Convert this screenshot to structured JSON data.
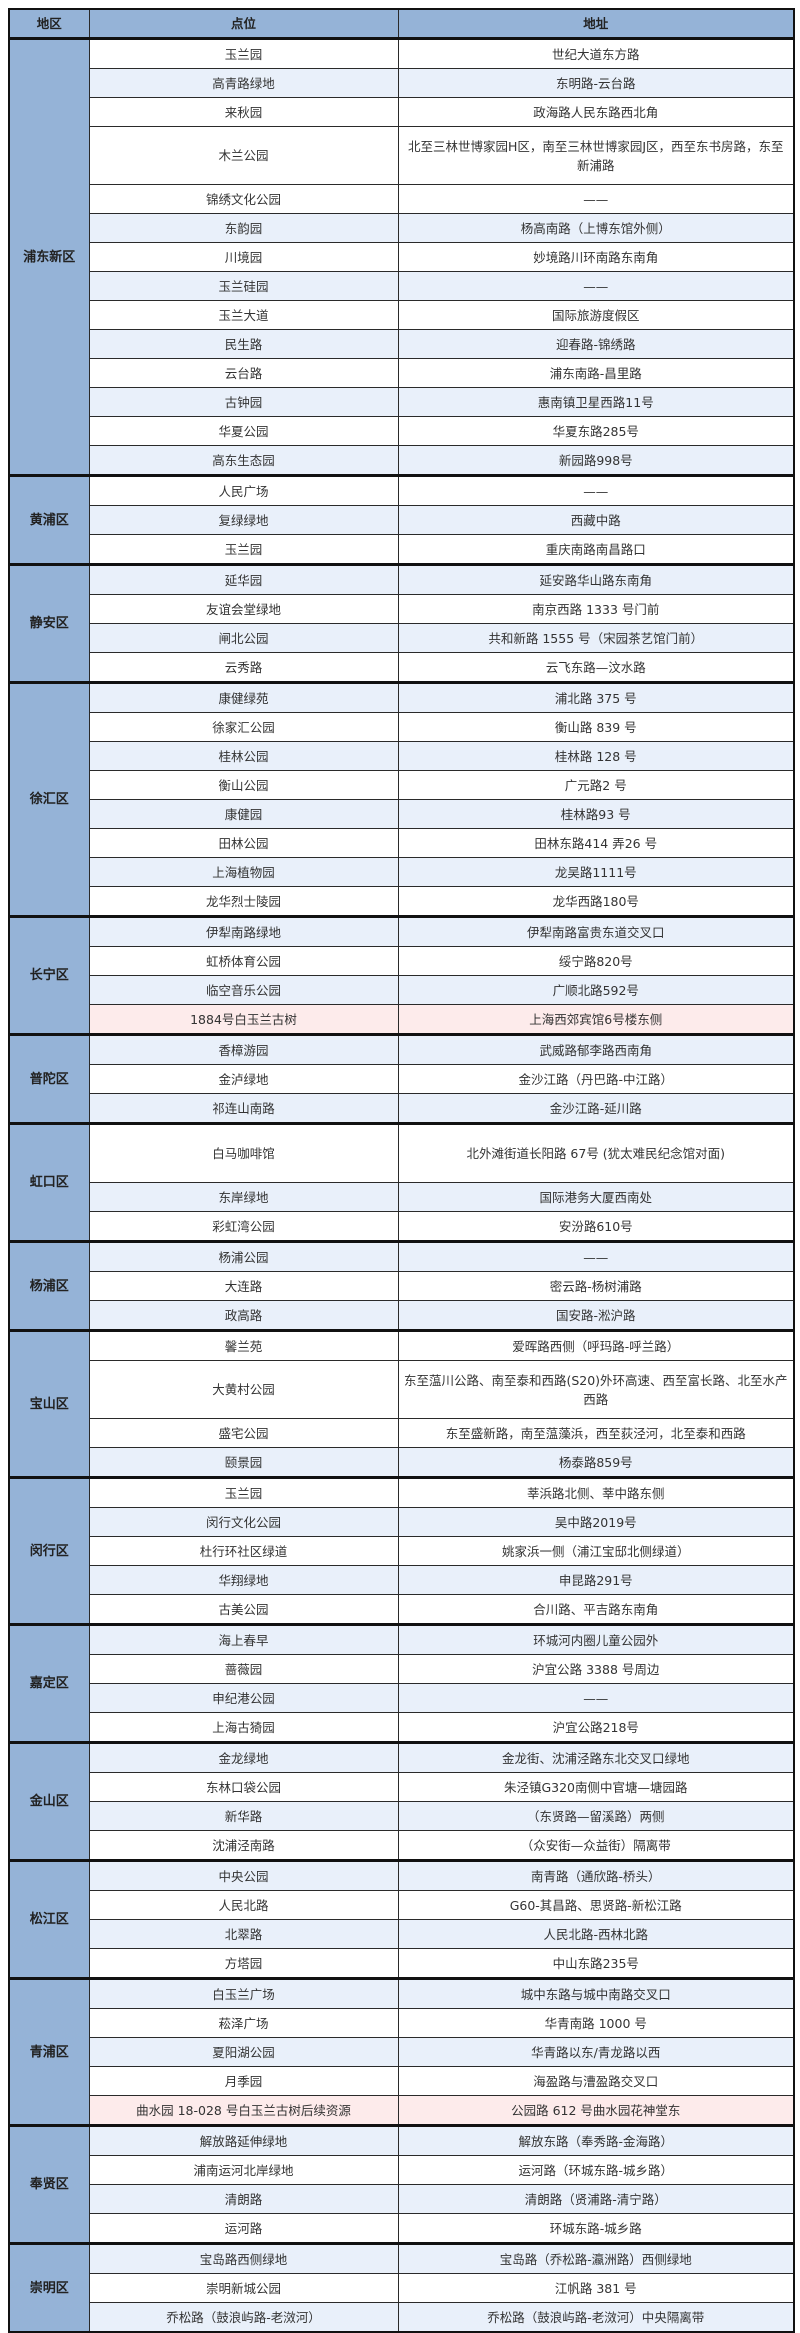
{
  "header": {
    "region": "地区",
    "point": "点位",
    "address": "地址"
  },
  "colors": {
    "header_bg": "#95b3d7",
    "row_alt": "#e9f0fa",
    "row_highlight": "#fdebeb"
  },
  "sections": [
    {
      "region": "浦东新区",
      "rows": [
        {
          "point": "玉兰园",
          "address": "世纪大道东方路",
          "shade": "w"
        },
        {
          "point": "高青路绿地",
          "address": "东明路-云台路",
          "shade": "b"
        },
        {
          "point": "来秋园",
          "address": "政海路人民东路西北角",
          "shade": "w"
        },
        {
          "point": "木兰公园",
          "address": "北至三林世博家园H区，南至三林世博家园J区，西至东书房路，东至新浦路",
          "shade": "w",
          "tall": true
        },
        {
          "point": "锦绣文化公园",
          "address": "——",
          "shade": "w"
        },
        {
          "point": "东韵园",
          "address": "杨高南路（上博东馆外侧）",
          "shade": "b"
        },
        {
          "point": "川境园",
          "address": "妙境路川环南路东南角",
          "shade": "w"
        },
        {
          "point": "玉兰硅园",
          "address": "——",
          "shade": "b"
        },
        {
          "point": "玉兰大道",
          "address": "国际旅游度假区",
          "shade": "w"
        },
        {
          "point": "民生路",
          "address": "迎春路-锦绣路",
          "shade": "b"
        },
        {
          "point": "云台路",
          "address": "浦东南路-昌里路",
          "shade": "w"
        },
        {
          "point": "古钟园",
          "address": "惠南镇卫星西路11号",
          "shade": "b"
        },
        {
          "point": "华夏公园",
          "address": "华夏东路285号",
          "shade": "w"
        },
        {
          "point": "高东生态园",
          "address": "新园路998号",
          "shade": "b"
        }
      ]
    },
    {
      "region": "黄浦区",
      "rows": [
        {
          "point": "人民广场",
          "address": "——",
          "shade": "w"
        },
        {
          "point": "复绿绿地",
          "address": "西藏中路",
          "shade": "b"
        },
        {
          "point": "玉兰园",
          "address": "重庆南路南昌路口",
          "shade": "w"
        }
      ]
    },
    {
      "region": "静安区",
      "rows": [
        {
          "point": "延华园",
          "address": "延安路华山路东南角",
          "shade": "b"
        },
        {
          "point": "友谊会堂绿地",
          "address": "南京西路 1333 号门前",
          "shade": "w"
        },
        {
          "point": "闸北公园",
          "address": "共和新路 1555 号（宋园茶艺馆门前）",
          "shade": "b"
        },
        {
          "point": "云秀路",
          "address": "云飞东路—汶水路",
          "shade": "w"
        }
      ]
    },
    {
      "region": "徐汇区",
      "rows": [
        {
          "point": "康健绿苑",
          "address": "浦北路 375 号",
          "shade": "b"
        },
        {
          "point": "徐家汇公园",
          "address": "衡山路 839 号",
          "shade": "w"
        },
        {
          "point": "桂林公园",
          "address": "桂林路 128 号",
          "shade": "b"
        },
        {
          "point": "衡山公园",
          "address": "广元路2 号",
          "shade": "w"
        },
        {
          "point": "康健园",
          "address": "桂林路93 号",
          "shade": "b"
        },
        {
          "point": "田林公园",
          "address": "田林东路414 弄26 号",
          "shade": "w"
        },
        {
          "point": "上海植物园",
          "address": "龙吴路1111号",
          "shade": "b"
        },
        {
          "point": "龙华烈士陵园",
          "address": "龙华西路180号",
          "shade": "w"
        }
      ]
    },
    {
      "region": "长宁区",
      "rows": [
        {
          "point": "伊犁南路绿地",
          "address": "伊犁南路富贵东道交叉口",
          "shade": "b"
        },
        {
          "point": "虹桥体育公园",
          "address": "绥宁路820号",
          "shade": "w"
        },
        {
          "point": "临空音乐公园",
          "address": "广顺北路592号",
          "shade": "b"
        },
        {
          "point": "1884号白玉兰古树",
          "address": "上海西郊宾馆6号楼东侧",
          "shade": "p"
        }
      ]
    },
    {
      "region": "普陀区",
      "rows": [
        {
          "point": "香樟游园",
          "address": "武威路郁李路西南角",
          "shade": "b"
        },
        {
          "point": "金泸绿地",
          "address": "金沙江路（丹巴路-中江路）",
          "shade": "w"
        },
        {
          "point": "祁连山南路",
          "address": "金沙江路-延川路",
          "shade": "b"
        }
      ]
    },
    {
      "region": "虹口区",
      "rows": [
        {
          "point": "白马咖啡馆",
          "address": "北外滩街道长阳路 67号 (犹太难民纪念馆对面)",
          "shade": "w",
          "tall": true
        },
        {
          "point": "东岸绿地",
          "address": "国际港务大厦西南处",
          "shade": "b"
        },
        {
          "point": "彩虹湾公园",
          "address": "安汾路610号",
          "shade": "w"
        }
      ]
    },
    {
      "region": "杨浦区",
      "rows": [
        {
          "point": "杨浦公园",
          "address": "——",
          "shade": "b"
        },
        {
          "point": "大连路",
          "address": "密云路-杨树浦路",
          "shade": "w"
        },
        {
          "point": "政高路",
          "address": "国安路-淞沪路",
          "shade": "b"
        }
      ]
    },
    {
      "region": "宝山区",
      "rows": [
        {
          "point": "馨兰苑",
          "address": "爱晖路西侧（呼玛路-呼兰路）",
          "shade": "w"
        },
        {
          "point": "大黄村公园",
          "address": "东至蕰川公路、南至泰和西路(S20)外环高速、西至富长路、北至水产西路",
          "shade": "w",
          "tall": true
        },
        {
          "point": "盛宅公园",
          "address": "东至盛新路，南至蕰藻浜，西至荻泾河，北至泰和西路",
          "shade": "w"
        },
        {
          "point": "颐景园",
          "address": "杨泰路859号",
          "shade": "b"
        }
      ]
    },
    {
      "region": "闵行区",
      "rows": [
        {
          "point": "玉兰园",
          "address": "莘浜路北侧、莘中路东侧",
          "shade": "w"
        },
        {
          "point": "闵行文化公园",
          "address": "吴中路2019号",
          "shade": "b"
        },
        {
          "point": "杜行环社区绿道",
          "address": "姚家浜一侧（浦江宝邸北侧绿道）",
          "shade": "w"
        },
        {
          "point": "华翔绿地",
          "address": "申昆路291号",
          "shade": "b"
        },
        {
          "point": "古美公园",
          "address": "合川路、平吉路东南角",
          "shade": "w"
        }
      ]
    },
    {
      "region": "嘉定区",
      "rows": [
        {
          "point": "海上春早",
          "address": "环城河内圈儿童公园外",
          "shade": "b"
        },
        {
          "point": "蔷薇园",
          "address": "沪宜公路 3388 号周边",
          "shade": "w"
        },
        {
          "point": "申纪港公园",
          "address": "——",
          "shade": "b"
        },
        {
          "point": "上海古猗园",
          "address": "沪宜公路218号",
          "shade": "w"
        }
      ]
    },
    {
      "region": "金山区",
      "rows": [
        {
          "point": "金龙绿地",
          "address": "金龙街、沈浦泾路东北交叉口绿地",
          "shade": "b"
        },
        {
          "point": "东林口袋公园",
          "address": "朱泾镇G320南侧中官塘—塘园路",
          "shade": "w"
        },
        {
          "point": "新华路",
          "address": "（东贤路—留溪路）两侧",
          "shade": "b"
        },
        {
          "point": "沈浦泾南路",
          "address": "（众安街—众益街）隔离带",
          "shade": "w"
        }
      ]
    },
    {
      "region": "松江区",
      "rows": [
        {
          "point": "中央公园",
          "address": "南青路（通欣路-桥头）",
          "shade": "b"
        },
        {
          "point": "人民北路",
          "address": "G60-其昌路、思贤路-新松江路",
          "shade": "w"
        },
        {
          "point": "北翠路",
          "address": "人民北路-西林北路",
          "shade": "b"
        },
        {
          "point": "方塔园",
          "address": "中山东路235号",
          "shade": "w"
        }
      ]
    },
    {
      "region": "青浦区",
      "rows": [
        {
          "point": "白玉兰广场",
          "address": "城中东路与城中南路交叉口",
          "shade": "b"
        },
        {
          "point": "菘泽广场",
          "address": "华青南路 1000 号",
          "shade": "w"
        },
        {
          "point": "夏阳湖公园",
          "address": "华青路以东/青龙路以西",
          "shade": "b"
        },
        {
          "point": "月季园",
          "address": "海盈路与漕盈路交叉口",
          "shade": "w"
        },
        {
          "point": "曲水园 18-028 号白玉兰古树后续资源",
          "address": "公园路 612 号曲水园花神堂东",
          "shade": "p"
        }
      ]
    },
    {
      "region": "奉贤区",
      "rows": [
        {
          "point": "解放路延伸绿地",
          "address": "解放东路（奉秀路-金海路）",
          "shade": "b"
        },
        {
          "point": "浦南运河北岸绿地",
          "address": "运河路（环城东路-城乡路）",
          "shade": "w"
        },
        {
          "point": "清朗路",
          "address": "清朗路（贤浦路-清宁路）",
          "shade": "b"
        },
        {
          "point": "运河路",
          "address": "环城东路-城乡路",
          "shade": "w"
        }
      ]
    },
    {
      "region": "崇明区",
      "rows": [
        {
          "point": "宝岛路西侧绿地",
          "address": "宝岛路（乔松路-瀛洲路）西侧绿地",
          "shade": "b"
        },
        {
          "point": "崇明新城公园",
          "address": "江帆路 381 号",
          "shade": "w"
        },
        {
          "point": "乔松路（鼓浪屿路-老滧河）",
          "address": "乔松路（鼓浪屿路-老滧河）中央隔离带",
          "shade": "b"
        }
      ]
    }
  ]
}
